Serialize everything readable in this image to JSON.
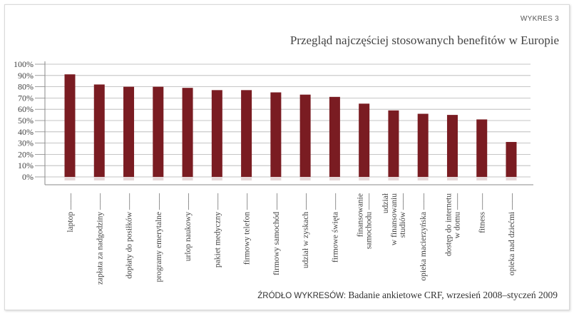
{
  "chart_label": "WYKRES 3",
  "chart_data": {
    "type": "bar",
    "title": "Przegląd najczęściej stosowanych benefitów w Europie",
    "xlabel": "",
    "ylabel": "",
    "ylim": [
      0,
      100
    ],
    "y_ticks": [
      "100%",
      "90%",
      "80%",
      "70%",
      "60%",
      "50%",
      "40%",
      "30%",
      "20%",
      "10%",
      "0%"
    ],
    "grid": true,
    "categories": [
      [
        "laptop"
      ],
      [
        "zapłata za nadgodziny"
      ],
      [
        "dopłaty do posiłków"
      ],
      [
        "programy emerytalne"
      ],
      [
        "urlop naukowy"
      ],
      [
        "pakiet medyczny"
      ],
      [
        "firmowy telefon"
      ],
      [
        "firmowy samochód"
      ],
      [
        "udział w zyskach"
      ],
      [
        "firmowe święta"
      ],
      [
        "finansowanie",
        "samochodu"
      ],
      [
        "udział",
        "w finansowaniu",
        "studiów"
      ],
      [
        "opieka macierzyńska"
      ],
      [
        "dostęp do internetu",
        "w domu"
      ],
      [
        "fitness"
      ],
      [
        "opieka nad dziećmi"
      ]
    ],
    "values": [
      91,
      82,
      80,
      80,
      79,
      77,
      77,
      75,
      73,
      71,
      65,
      59,
      56,
      55,
      51,
      31
    ],
    "bar_color": "#7a1c22",
    "grid_color": "#b3b3b3"
  },
  "source": {
    "label": "ŹRÓDŁO WYKRESÓW:",
    "text": "Badanie ankietowe CRF, wrzesień 2008–styczeń 2009"
  }
}
